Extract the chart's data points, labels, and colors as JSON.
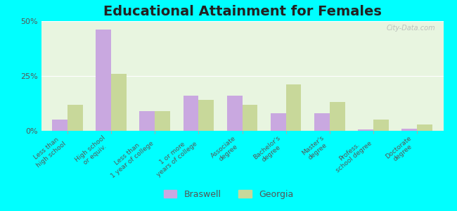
{
  "title": "Educational Attainment for Females",
  "categories": [
    "Less than\nhigh school",
    "High school\nor equiv.",
    "Less than\n1 year of college",
    "1 or more\nyears of college",
    "Associate\ndegree",
    "Bachelor's\ndegree",
    "Master's\ndegree",
    "Profess.\nschool degree",
    "Doctorate\ndegree"
  ],
  "braswell": [
    5,
    46,
    9,
    16,
    16,
    8,
    8,
    0.5,
    1
  ],
  "georgia": [
    12,
    26,
    9,
    14,
    12,
    21,
    13,
    5,
    3
  ],
  "braswell_color": "#c9a8e0",
  "georgia_color": "#c8d89a",
  "background_color": "#e8f5e0",
  "outer_background": "#00ffff",
  "ylim": [
    0,
    50
  ],
  "yticks": [
    0,
    25,
    50
  ],
  "ytick_labels": [
    "0%",
    "25%",
    "50%"
  ],
  "bar_width": 0.35,
  "title_fontsize": 14,
  "tick_fontsize": 6.5,
  "legend_fontsize": 9
}
